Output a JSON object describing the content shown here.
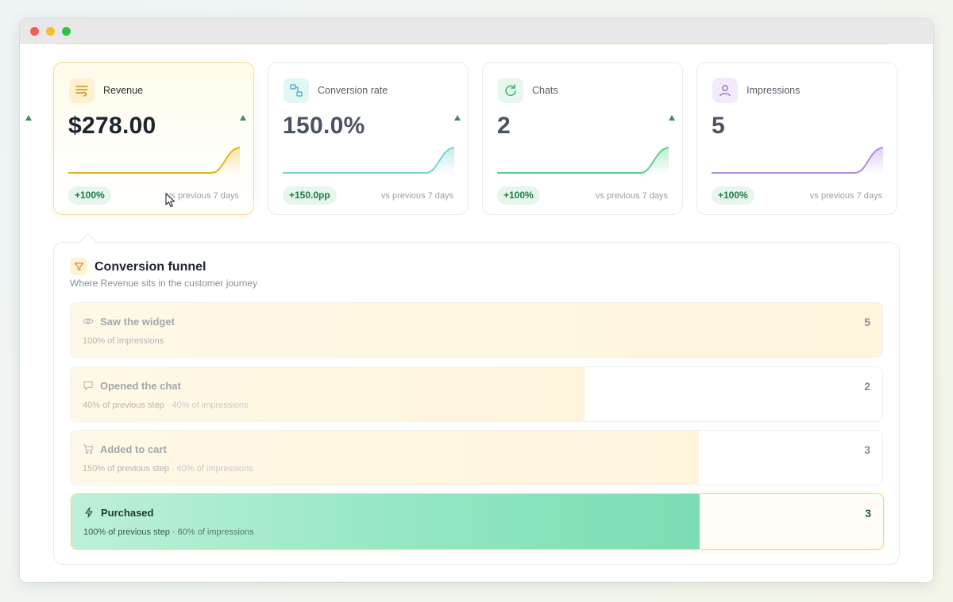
{
  "window": {
    "controls": [
      "close",
      "minimize",
      "maximize"
    ]
  },
  "cards": [
    {
      "label": "Revenue",
      "value": "$278.00",
      "delta": "+100%",
      "compare": "vs previous 7 days",
      "active": true,
      "icon": "list-icon",
      "color": "#e0b523",
      "icon_bg": "#fff1cf"
    },
    {
      "label": "Conversion rate",
      "value": "150.0%",
      "delta": "+150.0pp",
      "compare": "vs previous 7 days",
      "active": false,
      "icon": "flow-icon",
      "color": "#7dcfd9",
      "icon_bg": "#e2f6f8"
    },
    {
      "label": "Chats",
      "value": "2",
      "delta": "+100%",
      "compare": "vs previous 7 days",
      "active": false,
      "icon": "chat-refresh-icon",
      "color": "#5fcf8a",
      "icon_bg": "#e6f7ee"
    },
    {
      "label": "Impressions",
      "value": "5",
      "delta": "+100%",
      "compare": "vs previous 7 days",
      "active": false,
      "icon": "user-icon",
      "color": "#b08ee6",
      "icon_bg": "#f2ebfc"
    }
  ],
  "funnel": {
    "title": "Conversion funnel",
    "subtitle": "Where Revenue sits in the customer journey",
    "icon": "funnel-icon",
    "steps": [
      {
        "label": "Saw the widget",
        "meta": "100% of impressions",
        "meta_extra": "",
        "count": "5",
        "fill_fraction": 1.0,
        "icon": "eye-icon"
      },
      {
        "label": "Opened the chat",
        "meta": "40% of previous step",
        "meta_extra": " · 40% of impressions",
        "count": "2",
        "fill_fraction": 0.633,
        "icon": "chat-icon"
      },
      {
        "label": "Added to cart",
        "meta": "150% of previous step",
        "meta_extra": " · 60% of impressions",
        "count": "3",
        "fill_fraction": 0.774,
        "icon": "cart-icon"
      },
      {
        "label": "Purchased",
        "meta": "100% of previous step",
        "meta_extra": " · 60% of impressions",
        "count": "3",
        "fill_fraction": 0.774,
        "icon": "bolt-icon"
      }
    ]
  }
}
